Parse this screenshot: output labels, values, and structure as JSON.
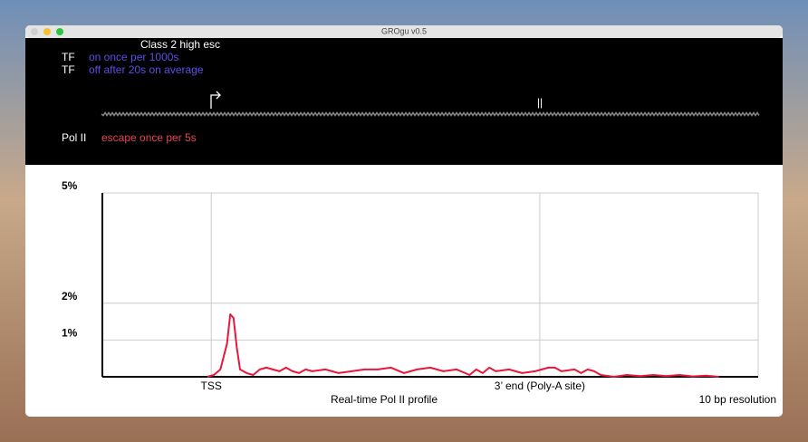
{
  "window": {
    "title": "GROgu v0.5"
  },
  "panel": {
    "heading": "Class 2 high esc",
    "rows": [
      {
        "label": "TF",
        "text": "on once per 1000s"
      },
      {
        "label": "TF",
        "text": "off after 20s on average"
      },
      {
        "label": "Pol II",
        "text": "escape once per 5s"
      }
    ],
    "pause_mark": "||"
  },
  "chart_data": {
    "type": "line",
    "color": "#e8173c",
    "title": "Real-time Pol II profile",
    "note": "10 bp resolution",
    "x": [
      16,
      17,
      18,
      19,
      19.5,
      20,
      20.5,
      21,
      22,
      23,
      24,
      25,
      26,
      27,
      28,
      29,
      30,
      31,
      32,
      34,
      36,
      38,
      40,
      42,
      44,
      46,
      48,
      50,
      52,
      54,
      56,
      57,
      58,
      59,
      60,
      62,
      64,
      66,
      67,
      68,
      69,
      70,
      72,
      73,
      74,
      75,
      76,
      78,
      80,
      82,
      84,
      86,
      88,
      90,
      92,
      94
    ],
    "values": [
      0,
      0.05,
      0.2,
      0.9,
      1.7,
      1.6,
      0.8,
      0.2,
      0.1,
      0.05,
      0.2,
      0.25,
      0.2,
      0.15,
      0.25,
      0.15,
      0.1,
      0.2,
      0.15,
      0.2,
      0.1,
      0.15,
      0.2,
      0.2,
      0.25,
      0.1,
      0.2,
      0.25,
      0.15,
      0.2,
      0.05,
      0.2,
      0.1,
      0.25,
      0.15,
      0.2,
      0.1,
      0.15,
      0.2,
      0.25,
      0.25,
      0.15,
      0.2,
      0.1,
      0.2,
      0.15,
      0.05,
      0,
      0.05,
      0.02,
      0.05,
      0.02,
      0.05,
      0.01,
      0.03,
      0
    ],
    "xlim": [
      0,
      100
    ],
    "xticks": [
      {
        "value": 16.6,
        "label": "TSS"
      },
      {
        "value": 66.7,
        "label": "3’ end (Poly-A site)"
      }
    ],
    "ylim": [
      0,
      5
    ],
    "yticks": [
      {
        "value": 1,
        "label": "1%"
      },
      {
        "value": 2,
        "label": "2%"
      },
      {
        "value": 5,
        "label": "5%"
      }
    ],
    "grid": true
  }
}
